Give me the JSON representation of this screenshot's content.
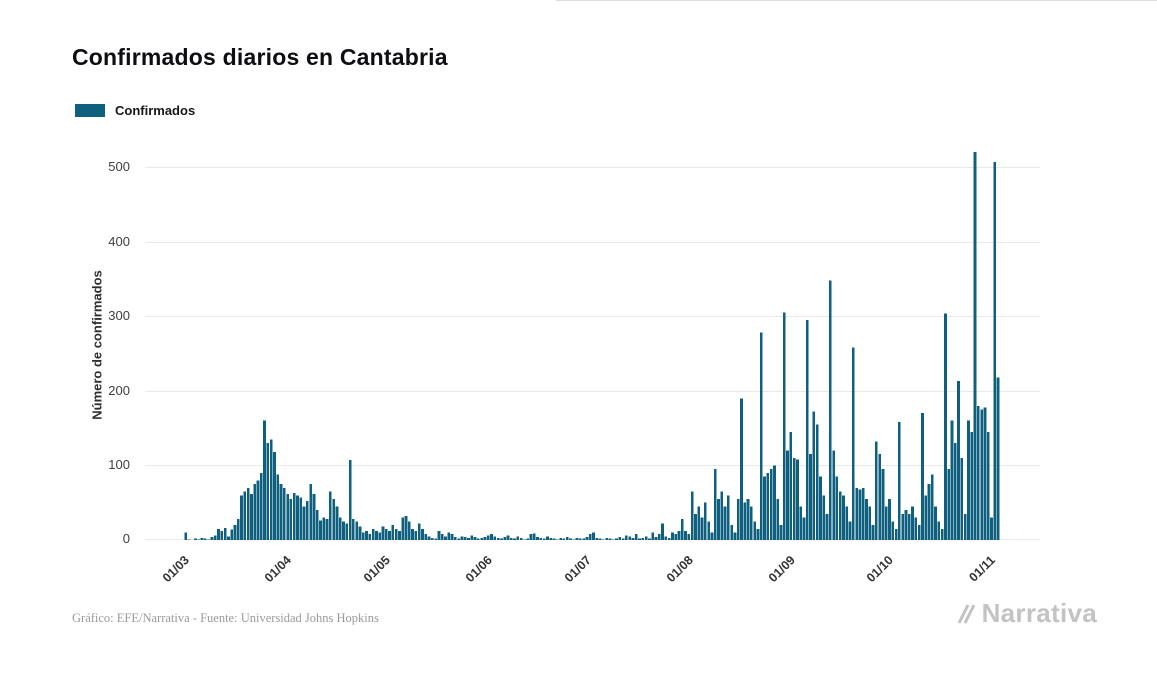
{
  "title": "Confirmados diarios en Cantabria",
  "legend": {
    "label": "Confirmados",
    "color": "#0f5f7f"
  },
  "footer": {
    "credit": "Gráfico: EFE/Narrativa - Fuente: Universidad Johns Hopkins"
  },
  "brand": {
    "name": "Narrativa"
  },
  "chart_data": {
    "type": "bar",
    "title": "Confirmados diarios en Cantabria",
    "xlabel": "",
    "ylabel": "Número de confirmados",
    "ylim": [
      0,
      523
    ],
    "yticks": [
      0,
      100,
      200,
      300,
      400,
      500
    ],
    "grid": true,
    "legend_position": "top-left",
    "bar_color": "#0f5f7f",
    "x_start": "01/03/2020",
    "x_end": "04/11/2020",
    "x_frequency": "daily",
    "x_tick_labels": [
      "01/03",
      "01/04",
      "01/05",
      "01/06",
      "01/07",
      "01/08",
      "01/09",
      "01/10",
      "01/11"
    ],
    "series": [
      {
        "name": "Confirmados",
        "values": [
          0,
          10,
          1,
          0,
          2,
          1,
          3,
          2,
          1,
          4,
          6,
          15,
          12,
          16,
          5,
          14,
          20,
          28,
          60,
          65,
          70,
          62,
          75,
          80,
          90,
          160,
          130,
          135,
          118,
          88,
          75,
          70,
          62,
          55,
          63,
          60,
          57,
          45,
          52,
          75,
          62,
          40,
          26,
          30,
          28,
          65,
          55,
          45,
          30,
          25,
          22,
          107,
          28,
          25,
          18,
          10,
          12,
          8,
          15,
          12,
          10,
          18,
          15,
          12,
          20,
          15,
          12,
          30,
          32,
          25,
          15,
          12,
          22,
          15,
          8,
          5,
          3,
          2,
          12,
          8,
          5,
          10,
          8,
          4,
          2,
          5,
          4,
          3,
          6,
          4,
          2,
          3,
          4,
          6,
          8,
          5,
          3,
          2,
          4,
          6,
          3,
          2,
          5,
          3,
          1,
          2,
          8,
          9,
          4,
          3,
          2,
          5,
          3,
          2,
          1,
          3,
          2,
          4,
          2,
          1,
          3,
          2,
          2,
          4,
          8,
          10,
          3,
          2,
          1,
          3,
          2,
          1,
          2,
          4,
          2,
          6,
          5,
          3,
          8,
          2,
          3,
          5,
          2,
          10,
          4,
          8,
          22,
          5,
          3,
          10,
          8,
          12,
          28,
          12,
          8,
          65,
          35,
          45,
          30,
          50,
          25,
          10,
          95,
          55,
          65,
          45,
          60,
          20,
          10,
          55,
          190,
          50,
          55,
          45,
          25,
          15,
          278,
          85,
          90,
          95,
          100,
          55,
          20,
          305,
          120,
          145,
          110,
          108,
          45,
          30,
          295,
          115,
          172,
          155,
          85,
          60,
          35,
          348,
          120,
          85,
          65,
          60,
          45,
          25,
          258,
          70,
          68,
          70,
          55,
          45,
          20,
          132,
          115,
          95,
          45,
          55,
          25,
          15,
          158,
          35,
          40,
          35,
          45,
          30,
          20,
          170,
          60,
          75,
          88,
          45,
          25,
          15,
          304,
          95,
          160,
          130,
          213,
          110,
          35,
          160,
          145,
          520,
          180,
          175,
          178,
          145,
          30,
          507,
          218
        ]
      }
    ]
  }
}
